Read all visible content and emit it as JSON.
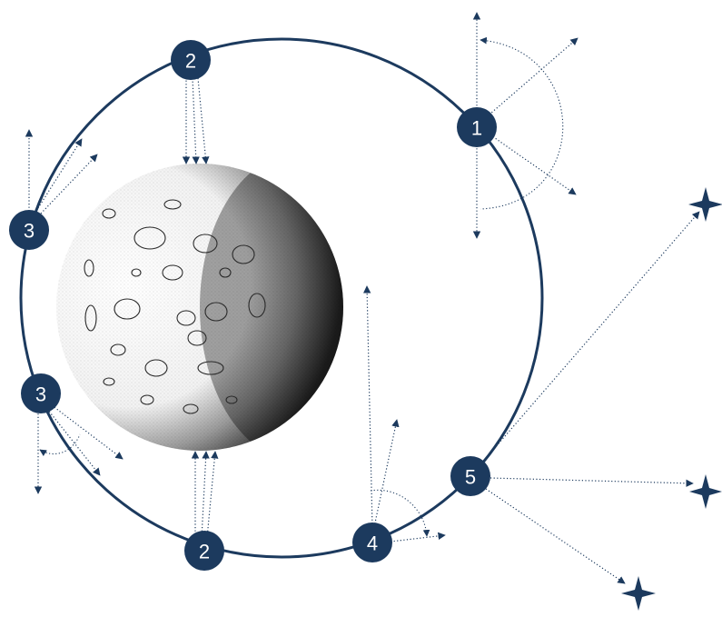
{
  "colors": {
    "navy": "#1c3a5e",
    "badge_text": "#ffffff",
    "background": "#ffffff"
  },
  "badges": [
    {
      "id": "badge-1",
      "label": "1"
    },
    {
      "id": "badge-2-top",
      "label": "2"
    },
    {
      "id": "badge-2-bottom",
      "label": "2"
    },
    {
      "id": "badge-3-upper",
      "label": "3"
    },
    {
      "id": "badge-3-lower",
      "label": "3"
    },
    {
      "id": "badge-4",
      "label": "4"
    },
    {
      "id": "badge-5",
      "label": "5"
    }
  ],
  "icons": [
    "moon-illustration",
    "orbit-ring",
    "star-icon"
  ]
}
